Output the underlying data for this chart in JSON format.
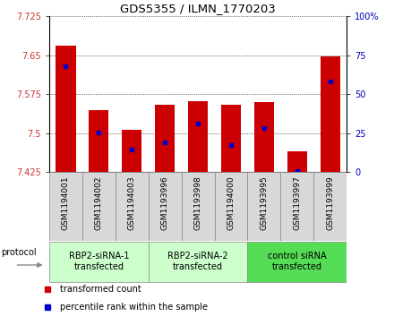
{
  "title": "GDS5355 / ILMN_1770203",
  "samples": [
    "GSM1194001",
    "GSM1194002",
    "GSM1194003",
    "GSM1193996",
    "GSM1193998",
    "GSM1194000",
    "GSM1193995",
    "GSM1193997",
    "GSM1193999"
  ],
  "bar_tops": [
    7.668,
    7.545,
    7.507,
    7.555,
    7.562,
    7.555,
    7.56,
    7.465,
    7.648
  ],
  "bar_bottom": 7.425,
  "blue_values": [
    7.628,
    7.502,
    7.468,
    7.482,
    7.518,
    7.478,
    7.51,
    7.428,
    7.6
  ],
  "ylim_left": [
    7.425,
    7.725
  ],
  "ylim_right": [
    0,
    100
  ],
  "yticks_left": [
    7.425,
    7.5,
    7.575,
    7.65,
    7.725
  ],
  "yticks_right": [
    0,
    25,
    50,
    75,
    100
  ],
  "ytick_labels_left": [
    "7.425",
    "7.5",
    "7.575",
    "7.65",
    "7.725"
  ],
  "ytick_labels_right": [
    "0",
    "25",
    "50",
    "75",
    "100%"
  ],
  "groups": [
    {
      "label": "RBP2-siRNA-1\ntransfected",
      "start": 0,
      "end": 3,
      "color": "#ccffcc"
    },
    {
      "label": "RBP2-siRNA-2\ntransfected",
      "start": 3,
      "end": 6,
      "color": "#ccffcc"
    },
    {
      "label": "control siRNA\ntransfected",
      "start": 6,
      "end": 9,
      "color": "#55dd55"
    }
  ],
  "bar_color": "#cc0000",
  "blue_color": "#0000cc",
  "grid_color": "#000000",
  "left_label_color": "#cc3333",
  "right_label_color": "#0000bb",
  "sample_box_color": "#d8d8d8",
  "protocol_label": "protocol",
  "legend_items": [
    {
      "color": "#cc0000",
      "label": "transformed count"
    },
    {
      "color": "#0000cc",
      "label": "percentile rank within the sample"
    }
  ]
}
